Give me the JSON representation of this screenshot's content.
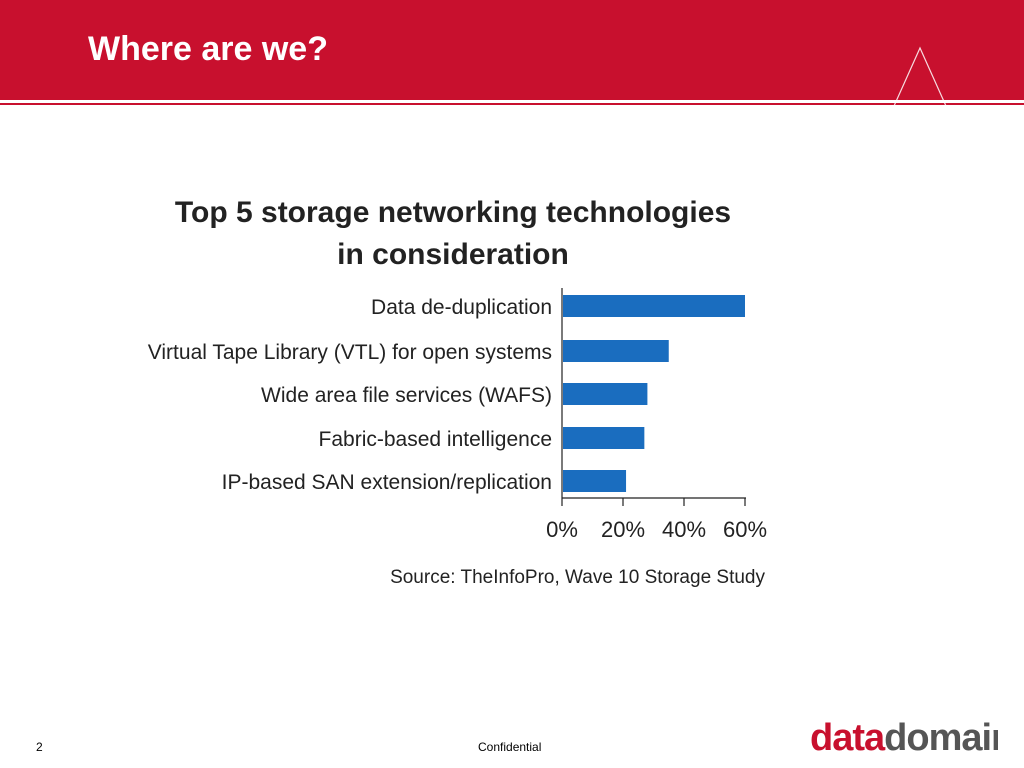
{
  "slide": {
    "title": "Where are we?",
    "page_number": "2",
    "footer": "Confidential"
  },
  "logo": {
    "part1": "data",
    "part2": "domain",
    "color_part1": "#c8102e",
    "color_part2": "#555555"
  },
  "colors": {
    "header": "#c8102e",
    "bar": "#1a6dbf"
  },
  "chart_data": {
    "type": "bar",
    "orientation": "horizontal",
    "title": "Top 5 storage networking technologies in consideration",
    "title_lines": [
      "Top 5 storage networking technologies",
      "in consideration"
    ],
    "categories": [
      "Data de-duplication",
      "Virtual Tape Library (VTL) for open systems",
      "Wide area file services (WAFS)",
      "Fabric-based intelligence",
      "IP-based SAN extension/replication"
    ],
    "values": [
      60,
      35,
      28,
      27,
      21
    ],
    "unit": "%",
    "xlim": [
      0,
      60
    ],
    "xticks": [
      "0%",
      "20%",
      "40%",
      "60%"
    ],
    "grid": false,
    "source": "Source: TheInfoPro, Wave 10 Storage Study"
  }
}
